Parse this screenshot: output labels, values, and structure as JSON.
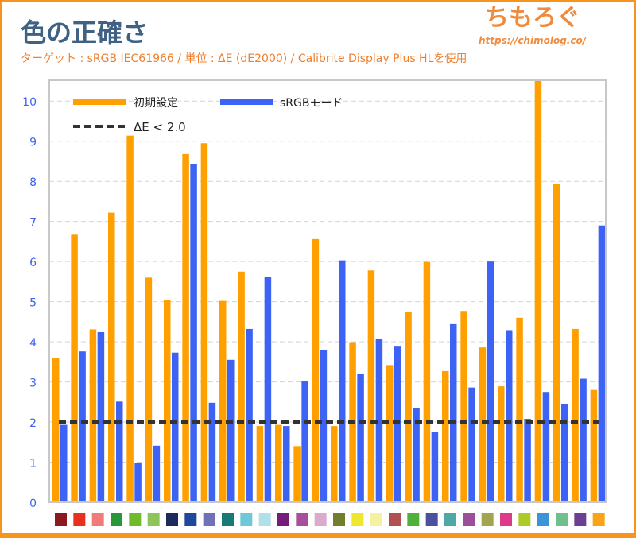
{
  "header": {
    "title": "色の正確さ",
    "subtitle": "ターゲット : sRGB IEC61966 / 単位 : ΔE (dE2000) / Calibrite Display Plus HLを使用",
    "logo_text": "ちもろぐ",
    "logo_url": "https://chimolog.co/"
  },
  "chart_data": {
    "type": "bar",
    "title": "色の正確さ",
    "ylim": [
      0,
      10.5
    ],
    "yticks": [
      0,
      1,
      2,
      3,
      4,
      5,
      6,
      7,
      8,
      9,
      10
    ],
    "grid": true,
    "legend_position": "top-left",
    "series": [
      {
        "name": "初期設定",
        "color": "#ffa000",
        "values": [
          3.6,
          6.67,
          4.31,
          7.22,
          9.14,
          5.6,
          5.05,
          8.68,
          8.95,
          5.02,
          5.75,
          1.9,
          1.93,
          1.4,
          6.56,
          1.9,
          3.99,
          5.78,
          3.42,
          4.75,
          5.99,
          3.27,
          4.77,
          3.86,
          2.89,
          4.6,
          11.0,
          7.94,
          4.32,
          2.8
        ]
      },
      {
        "name": "sRGBモード",
        "color": "#3d63f5",
        "values": [
          1.93,
          3.76,
          4.24,
          2.51,
          0.99,
          1.41,
          3.73,
          8.42,
          2.48,
          3.55,
          4.32,
          5.61,
          1.9,
          3.02,
          3.79,
          6.03,
          3.21,
          4.08,
          3.88,
          2.34,
          1.75,
          4.44,
          2.86,
          6.0,
          4.29,
          2.08,
          2.75,
          2.44,
          3.08,
          6.9
        ]
      }
    ],
    "reference_line": {
      "label": "ΔE < 2.0",
      "value": 2.0,
      "color": "#333333"
    },
    "category_swatches": [
      "#8b1a1f",
      "#e8301e",
      "#ef7c78",
      "#28973a",
      "#6fbb2c",
      "#8cc65a",
      "#1c2a5c",
      "#1f489b",
      "#6f72b8",
      "#177a78",
      "#6ec8d8",
      "#b0e0e8",
      "#731c7a",
      "#a84f9c",
      "#dcaacc",
      "#737d2e",
      "#eee72e",
      "#f4f1a0",
      "#b05050",
      "#50b03c",
      "#4d4f9f",
      "#4ea8a6",
      "#9b4f9b",
      "#a3a450",
      "#dd3889",
      "#acca2a",
      "#3c94d8",
      "#6fc08c",
      "#6b3f93",
      "#f8a416"
    ]
  }
}
